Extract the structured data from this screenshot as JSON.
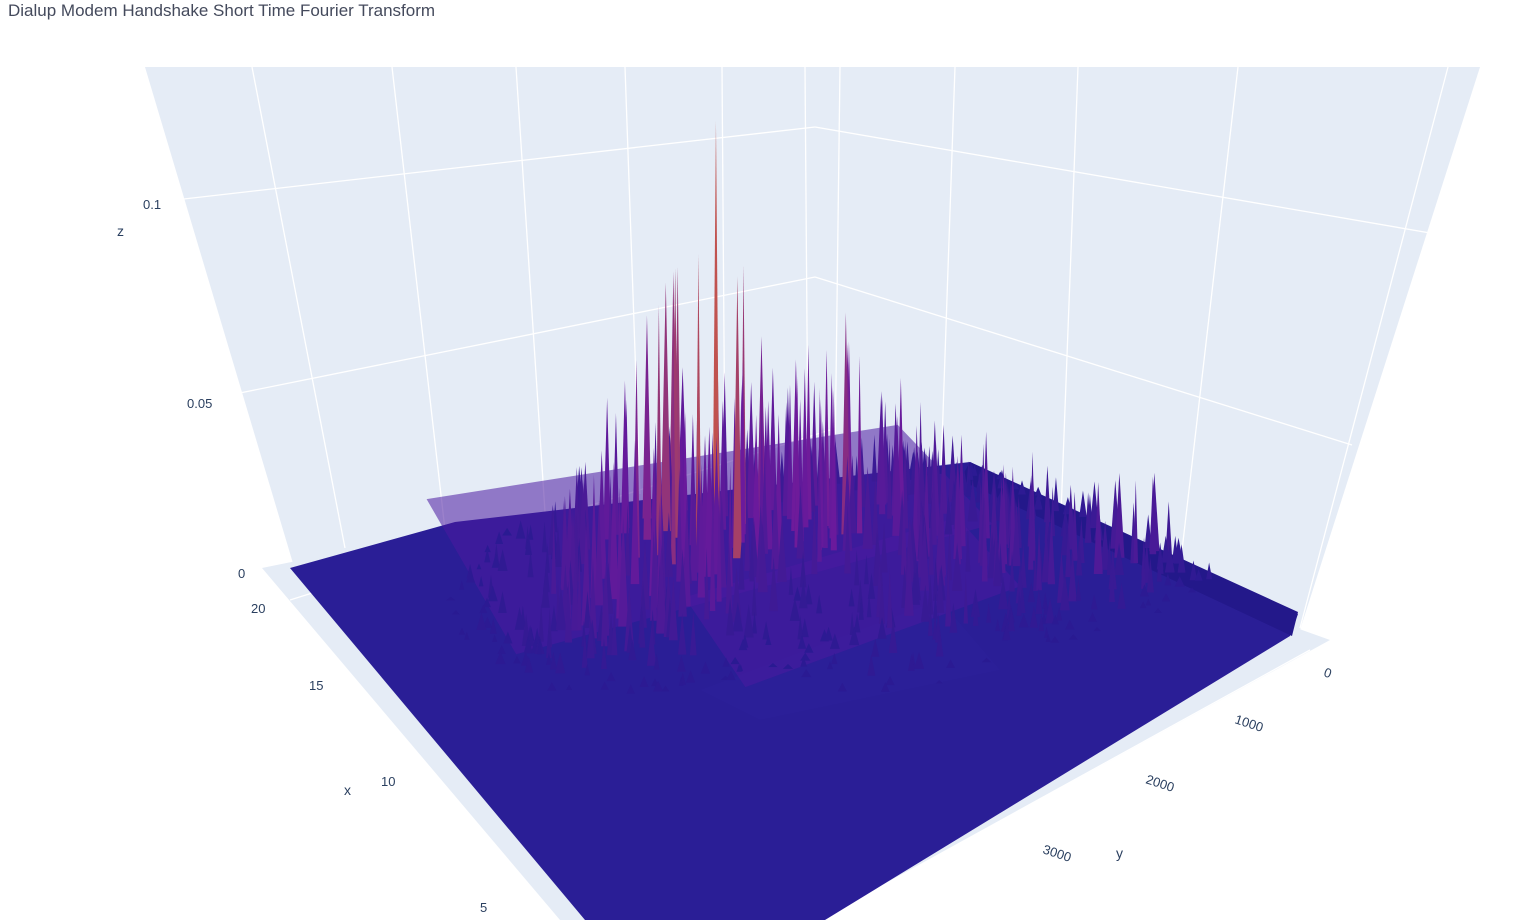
{
  "title": "Dialup Modem Handshake Short Time Fourier Transform",
  "colors": {
    "pane": "#e5ecf6",
    "grid": "#ffffff",
    "text": "#2a3f5f",
    "surface_low": "#271a92",
    "surface_mid": "#6c1a9c",
    "surface_high": "#c0524f"
  },
  "chart_data": {
    "type": "surface",
    "xlabel": "x",
    "ylabel": "y",
    "zlabel": "z",
    "xlim": [
      0,
      21
    ],
    "ylim": [
      0,
      4000
    ],
    "zlim": [
      0,
      0.13
    ],
    "x_ticks": [
      "5",
      "10",
      "15",
      "20"
    ],
    "y_ticks": [
      "0",
      "1000",
      "2000",
      "3000"
    ],
    "z_ticks": [
      "0",
      "0.05",
      "0.1"
    ],
    "peaks": [
      {
        "x": 18.5,
        "y": 1700,
        "z": 0.14
      },
      {
        "x": 17.5,
        "y": 1100,
        "z": 0.09
      },
      {
        "x": 16.0,
        "y": 2300,
        "z": 0.07
      },
      {
        "x": 13.0,
        "y": 700,
        "z": 0.055
      },
      {
        "x": 9.5,
        "y": 250,
        "z": 0.045
      },
      {
        "x": 10.5,
        "y": 1200,
        "z": 0.03
      }
    ],
    "grid": true,
    "colorscale": "Plasma"
  }
}
